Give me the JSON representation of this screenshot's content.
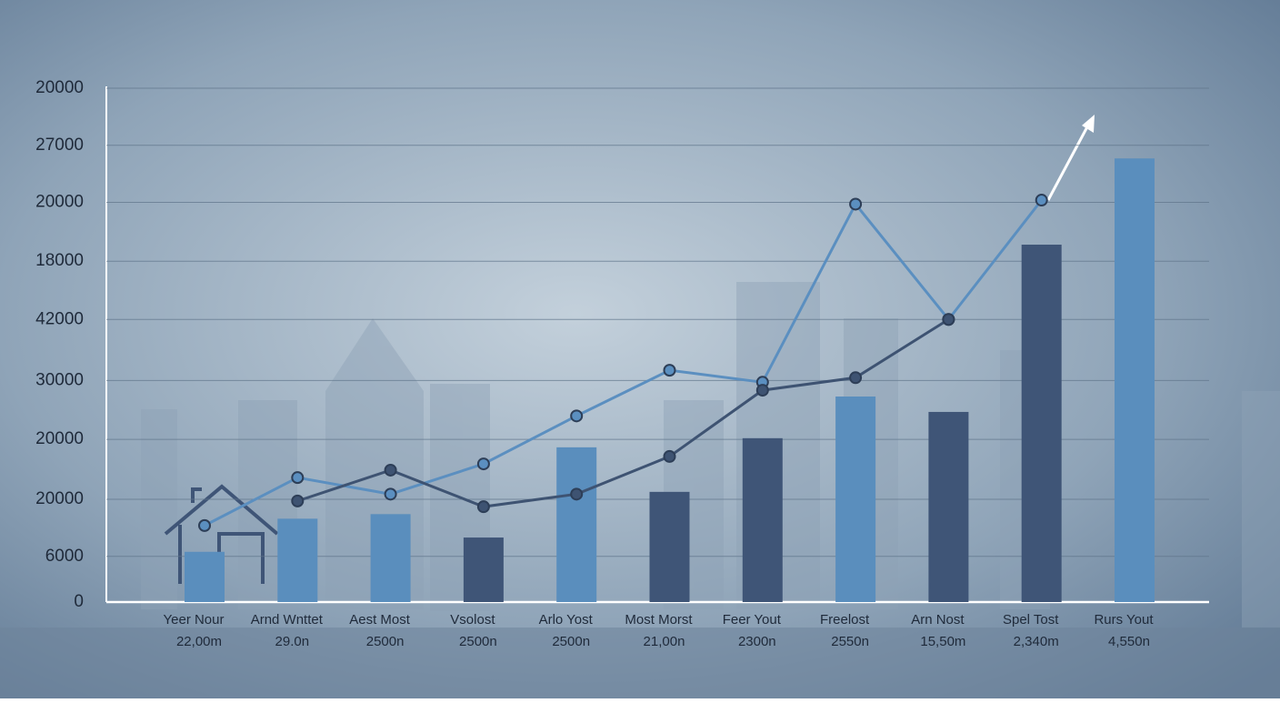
{
  "chart_data": {
    "type": "bar",
    "categories": [
      "Yeer Nour",
      "Arnd Wnttet",
      "Aest Most",
      "Vsolost",
      "Arlo Yost",
      "Most Morst",
      "Feer Yout",
      "Freelost",
      "Arn Nost",
      "Spel Tost",
      "Rurs Yout"
    ],
    "subcategories": [
      "22,00m",
      "29.0n",
      "2500n",
      "2500n",
      "2500n",
      "21,00n",
      "2300n",
      "2550n",
      "15,50m",
      "2,340m",
      "4,550n"
    ],
    "values": [
      0.88,
      1.46,
      1.54,
      1.13,
      2.71,
      1.93,
      2.87,
      3.6,
      3.33,
      6.26,
      7.77
    ],
    "colors": [
      "#5a8ebd",
      "#5a8ebd",
      "#5a8ebd",
      "#3f5577",
      "#5a8ebd",
      "#3f5577",
      "#3f5577",
      "#5a8ebd",
      "#3f5577",
      "#3f5577",
      "#5a8ebd"
    ],
    "series": [
      {
        "color": "#5b8fc0",
        "values": [
          1.34,
          2.18,
          1.89,
          2.42,
          3.26,
          4.06,
          3.85,
          6.97,
          4.95,
          7.04,
          null
        ]
      },
      {
        "color": "#3e5372",
        "values": [
          null,
          1.77,
          2.31,
          1.67,
          1.89,
          2.55,
          3.71,
          3.93,
          4.95,
          null,
          null
        ]
      }
    ],
    "ylim": [
      0,
      9
    ],
    "yticks": [
      0,
      {
        "value": 0.8,
        "label": "6000"
      },
      {
        "value": 1.8,
        "label": "20000"
      },
      {
        "value": 2.85,
        "label": "20000"
      },
      {
        "value": 3.88,
        "label": "30000"
      },
      {
        "value": 4.95,
        "label": "42000"
      },
      {
        "value": 5.97,
        "label": "18000"
      },
      {
        "value": 7.0,
        "label": "20000"
      },
      {
        "value": 8.0,
        "label": "27000"
      },
      {
        "value": 9.0,
        "label": "20000"
      }
    ],
    "grid": true
  }
}
